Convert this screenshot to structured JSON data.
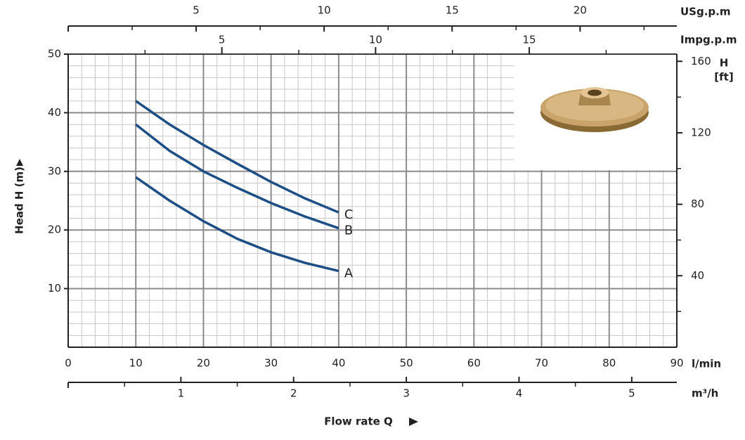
{
  "chart_data": {
    "type": "line",
    "xlabel": "Flow rate Q",
    "ylabel": "Head H (m)",
    "x_unit": "l/min",
    "xlim": [
      0,
      90
    ],
    "xticks": [
      0,
      10,
      20,
      30,
      40,
      50,
      60,
      70,
      80,
      90
    ],
    "ylim": [
      0,
      50
    ],
    "yticks": [
      10,
      20,
      30,
      40,
      50
    ],
    "grid": true,
    "grid_minor_step": 2,
    "y2label": [
      "H",
      "[ft]"
    ],
    "y2lim": [
      0,
      164.04
    ],
    "y2ticks": [
      40,
      80,
      120,
      160
    ],
    "y2minorticks": [
      20,
      60,
      100,
      140
    ],
    "secondary_x_axes": [
      {
        "label": "USg.p.m",
        "xlim": [
          0,
          23.78
        ],
        "xticks": [
          5,
          10,
          15,
          20
        ],
        "minorticks": [
          2.5,
          7.5,
          12.5,
          17.5,
          22.5
        ]
      },
      {
        "label": "Impg.p.m",
        "xlim": [
          0,
          19.8
        ],
        "xticks": [
          5,
          10,
          15
        ],
        "minorticks": [
          2.5,
          7.5,
          12.5,
          17.5
        ]
      },
      {
        "label": "m³/h",
        "xlim": [
          0,
          5.4
        ],
        "xticks": [
          1,
          2,
          3,
          4,
          5
        ],
        "minorticks": [
          0.5,
          1.5,
          2.5,
          3.5,
          4.5
        ]
      }
    ],
    "x": [
      10,
      15,
      20,
      25,
      30,
      35,
      40
    ],
    "series": [
      {
        "name": "A",
        "color": "#1d4f86",
        "values": [
          29,
          25,
          21.5,
          18.5,
          16.2,
          14.4,
          13
        ]
      },
      {
        "name": "B",
        "color": "#1d4f86",
        "values": [
          38,
          33.5,
          30,
          27.2,
          24.6,
          22.3,
          20.3
        ]
      },
      {
        "name": "C",
        "color": "#1d4f86",
        "values": [
          42,
          38,
          34.5,
          31.3,
          28.2,
          25.4,
          23
        ]
      }
    ]
  }
}
